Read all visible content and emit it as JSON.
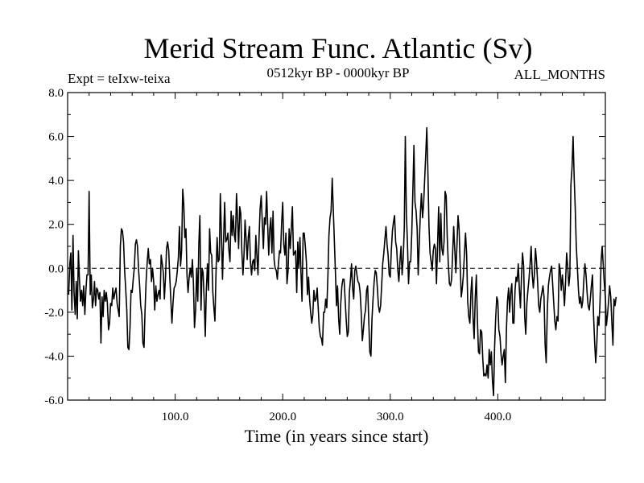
{
  "chart_data": {
    "type": "line",
    "title": "Merid Stream Func. Atlantic (Sv)",
    "subtitle_left": "Expt = teIxw-teixa",
    "subtitle_center": "0512kyr BP - 0000kyr BP",
    "subtitle_right": "ALL_MONTHS",
    "xlabel": "Time (in years since start)",
    "ylabel": "",
    "xlim": [
      0,
      500
    ],
    "ylim": [
      -6.0,
      8.0
    ],
    "x_ticks": [
      100,
      200,
      300,
      400
    ],
    "x_tick_labels": [
      "100.0",
      "200.0",
      "300.0",
      "400.0"
    ],
    "y_ticks": [
      -6,
      -4,
      -2,
      0,
      2,
      4,
      6,
      8
    ],
    "y_tick_labels": [
      "-6.0",
      "-4.0",
      "-2.0",
      "0.0",
      "2.0",
      "4.0",
      "6.0",
      "8.0"
    ],
    "reference_line": 0,
    "x_start": 1,
    "x_step": 1,
    "values": [
      -1.2,
      0.2,
      0.7,
      -1.9,
      1.5,
      -1.1,
      -2.1,
      -0.6,
      -2.3,
      0.8,
      -0.5,
      -1.5,
      -1.0,
      -1.7,
      -0.8,
      -2.1,
      -1.0,
      -0.3,
      -0.3,
      3.5,
      -1.2,
      -0.3,
      -1.8,
      -1.4,
      -0.6,
      -1.7,
      -0.9,
      -1.0,
      -1.4,
      -1.1,
      -3.4,
      -1.3,
      -2.2,
      -1.0,
      -1.5,
      -1.1,
      -1.6,
      -2.8,
      -2.5,
      -1.6,
      -1.7,
      -0.9,
      -1.4,
      -1.1,
      -0.9,
      -1.6,
      -1.9,
      -2.2,
      1.0,
      1.8,
      1.7,
      1.2,
      -0.1,
      -0.9,
      -1.9,
      -3.6,
      -3.7,
      -2.7,
      -1.0,
      -1.1,
      -0.5,
      0.0,
      1.1,
      1.3,
      1.0,
      -0.1,
      -0.8,
      -1.7,
      -2.1,
      -3.4,
      -3.6,
      -1.9,
      -0.6,
      0.3,
      0.9,
      0.2,
      0.4,
      -0.6,
      0.0,
      -0.6,
      -1.9,
      -0.8,
      -1.5,
      -1.2,
      -1.0,
      -1.4,
      0.6,
      0.2,
      -0.2,
      -1.4,
      -0.4,
      0.9,
      1.2,
      0.8,
      -0.4,
      -1.5,
      -2.5,
      -1.6,
      -0.9,
      -0.8,
      -0.6,
      -0.1,
      0.5,
      1.9,
      0.1,
      0.8,
      3.6,
      2.9,
      1.4,
      1.8,
      -0.3,
      -1.1,
      -0.4,
      0.0,
      -0.4,
      0.4,
      -0.7,
      -2.7,
      -1.9,
      0.0,
      -1.5,
      1.1,
      2.4,
      -1.9,
      0.0,
      -0.2,
      -1.5,
      -3.1,
      -1.0,
      0.2,
      -1.0,
      1.8,
      0.7,
      0.6,
      -1.1,
      -1.8,
      -2.4,
      -0.1,
      1.4,
      0.3,
      0.4,
      3.4,
      1.6,
      -0.5,
      1.3,
      3.0,
      1.2,
      1.3,
      1.6,
      0.8,
      0.3,
      2.6,
      1.5,
      2.4,
      1.5,
      1.2,
      3.4,
      2.3,
      0.9,
      2.8,
      2.5,
      0.8,
      -0.3,
      0.6,
      2.2,
      1.3,
      0.4,
      1.4,
      1.9,
      0.3,
      -0.3,
      0.3,
      0.4,
      -0.1,
      1.5,
      0.6,
      -0.3,
      1.4,
      2.7,
      3.3,
      2.1,
      0.9,
      2.3,
      2.0,
      3.5,
      2.0,
      0.6,
      1.8,
      2.3,
      0.7,
      2.6,
      0.4,
      0.0,
      -0.1,
      -0.5,
      0.2,
      0.8,
      0.7,
      2.1,
      3.0,
      1.1,
      0.6,
      1.6,
      -0.7,
      -0.1,
      1.8,
      0.9,
      1.8,
      2.8,
      0.6,
      0.7,
      0.8,
      -1.1,
      1.2,
      0.0,
      1.4,
      -0.2,
      -1.5,
      1.6,
      1.6,
      1.0,
      0.3,
      -1.2,
      -0.4,
      -1.4,
      -2.0,
      -2.5,
      -2.1,
      -1.0,
      -1.5,
      -1.4,
      -0.9,
      -1.8,
      -2.7,
      -3.1,
      -3.2,
      -3.5,
      -2.0,
      -2.0,
      -1.4,
      -1.8,
      -0.4,
      1.5,
      2.3,
      2.6,
      4.1,
      2.7,
      1.3,
      -0.2,
      -1.7,
      -0.8,
      -2.3,
      -3.0,
      -1.6,
      -0.8,
      -0.5,
      -0.5,
      -1.4,
      -2.3,
      -3.1,
      -2.9,
      -1.1,
      -0.5,
      0.2,
      -0.9,
      -1.4,
      -0.1,
      0.1,
      -0.3,
      -0.6,
      -0.7,
      -1.1,
      -2.0,
      -3.3,
      -2.8,
      -2.2,
      -1.9,
      -1.0,
      -0.8,
      -2.4,
      -3.8,
      -4.0,
      -2.3,
      -1.4,
      -0.6,
      -0.1,
      -0.2,
      -0.9,
      -1.7,
      -2.0,
      -1.7,
      -0.8,
      0.2,
      0.7,
      1.3,
      1.9,
      1.1,
      0.6,
      -0.3,
      -0.4,
      0.8,
      1.7,
      2.1,
      2.4,
      1.2,
      0.9,
      -0.1,
      -0.6,
      0.3,
      1.0,
      -0.3,
      0.4,
      1.8,
      6.0,
      2.5,
      1.1,
      -0.7,
      0.3,
      0.3,
      1.6,
      3.6,
      5.6,
      3.0,
      2.6,
      1.8,
      -0.3,
      1.2,
      2.5,
      3.4,
      2.3,
      2.9,
      4.1,
      5.2,
      6.4,
      4.3,
      1.9,
      0.7,
      0.3,
      -0.1,
      0.8,
      1.1,
      0.9,
      -0.7,
      1.1,
      2.8,
      0.3,
      2.5,
      0.9,
      0.6,
      1.2,
      3.5,
      3.3,
      1.4,
      0.2,
      -0.7,
      -0.8,
      -0.5,
      0.7,
      1.9,
      0.8,
      -0.2,
      1.0,
      2.4,
      1.8,
      0.2,
      -1.3,
      -0.9,
      -0.3,
      0.7,
      1.6,
      0.6,
      -1.5,
      -2.2,
      -2.5,
      -1.1,
      -0.4,
      -2.3,
      -3.2,
      -1.4,
      -0.3,
      -2.3,
      -3.8,
      -3.9,
      -2.8,
      -2.9,
      -4.1,
      -4.9,
      -4.8,
      -4.9,
      -4.4,
      -5.0,
      -3.7,
      -4.4,
      -3.8,
      -5.1,
      -5.8,
      -3.6,
      -2.3,
      -1.3,
      -1.5,
      -2.8,
      -3.1,
      -3.9,
      -4.4,
      -4.0,
      -3.7,
      -5.2,
      -2.8,
      -1.5,
      -0.9,
      -2.0,
      -1.1,
      -0.7,
      -2.5,
      -2.5,
      -1.0,
      -0.4,
      -0.6,
      0.2,
      -0.9,
      -1.8,
      -0.4,
      0.7,
      0.1,
      -2.2,
      -3.0,
      -1.6,
      -1.0,
      -0.5,
      0.2,
      1.0,
      -0.3,
      -0.9,
      -0.3,
      0.9,
      0.3,
      -0.6,
      -1.7,
      -2.0,
      -1.4,
      -1.1,
      -0.8,
      -1.3,
      -3.5,
      -4.3,
      -1.9,
      -0.8,
      -0.4,
      -0.1,
      0.1,
      -0.7,
      -1.6,
      -2.4,
      -2.8,
      -2.2,
      -2.4,
      0.2,
      -0.1,
      -1.0,
      -0.3,
      -0.9,
      -1.7,
      -0.6,
      0.7,
      0.1,
      -0.8,
      -0.3,
      3.8,
      4.6,
      6.0,
      4.1,
      2.7,
      1.0,
      0.0,
      -1.0,
      -1.6,
      -1.3,
      -1.8,
      -1.5,
      -0.5,
      0.2,
      -0.3,
      -1.1,
      -1.7,
      -1.9,
      -1.4,
      -0.8,
      -0.3,
      -2.1,
      -3.3,
      -4.3,
      -3.5,
      -2.2,
      -2.6,
      -1.6,
      0.3,
      1.0,
      0.2,
      -0.7,
      -1.3,
      -2.6,
      -2.1,
      -1.5,
      -0.8,
      -1.3,
      -2.4,
      -3.5,
      -1.4,
      -1.7,
      -1.3
    ]
  }
}
